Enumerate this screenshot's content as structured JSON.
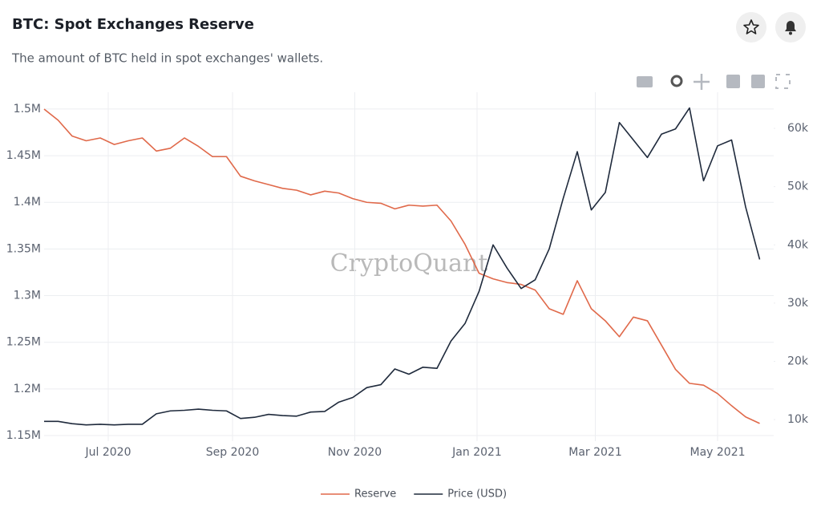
{
  "title": "BTC: Spot Exchanges Reserve",
  "subtitle": "The amount of BTC held in spot exchanges' wallets.",
  "chart_data": {
    "type": "line",
    "watermark": "CryptoQuant",
    "x": [
      "2020-05-30",
      "2020-06-06",
      "2020-06-13",
      "2020-06-20",
      "2020-06-27",
      "2020-07-04",
      "2020-07-11",
      "2020-07-18",
      "2020-07-25",
      "2020-08-01",
      "2020-08-08",
      "2020-08-15",
      "2020-08-22",
      "2020-08-29",
      "2020-09-05",
      "2020-09-12",
      "2020-09-19",
      "2020-09-26",
      "2020-10-03",
      "2020-10-10",
      "2020-10-17",
      "2020-10-24",
      "2020-10-31",
      "2020-11-07",
      "2020-11-14",
      "2020-11-21",
      "2020-11-28",
      "2020-12-05",
      "2020-12-12",
      "2020-12-19",
      "2020-12-26",
      "2021-01-02",
      "2021-01-09",
      "2021-01-16",
      "2021-01-23",
      "2021-01-30",
      "2021-02-06",
      "2021-02-13",
      "2021-02-20",
      "2021-02-27",
      "2021-03-06",
      "2021-03-13",
      "2021-03-20",
      "2021-03-27",
      "2021-04-03",
      "2021-04-10",
      "2021-04-17",
      "2021-04-24",
      "2021-05-01",
      "2021-05-08",
      "2021-05-15",
      "2021-05-22"
    ],
    "series": [
      {
        "name": "Reserve",
        "color": "#e0694a",
        "axis": "y",
        "values": [
          1500000,
          1488000,
          1471000,
          1466000,
          1469000,
          1462000,
          1466000,
          1469000,
          1455000,
          1458000,
          1469000,
          1460000,
          1449000,
          1449000,
          1428000,
          1423000,
          1419000,
          1415000,
          1413000,
          1408000,
          1412000,
          1410000,
          1404000,
          1400000,
          1399000,
          1393000,
          1397000,
          1396000,
          1397000,
          1380000,
          1355000,
          1324000,
          1318000,
          1314000,
          1312000,
          1306000,
          1286000,
          1280000,
          1316000,
          1286000,
          1273000,
          1256000,
          1277000,
          1273000,
          1247000,
          1221000,
          1206000,
          1204000,
          1195000,
          1182000,
          1170000,
          1163000
        ]
      },
      {
        "name": "Price (USD)",
        "color": "#1f2a3c",
        "axis": "y2",
        "values": [
          9700,
          9700,
          9300,
          9100,
          9200,
          9100,
          9200,
          9200,
          11000,
          11500,
          11600,
          11800,
          11600,
          11500,
          10200,
          10400,
          10900,
          10700,
          10600,
          11300,
          11400,
          13000,
          13800,
          15500,
          16000,
          18700,
          17800,
          19000,
          18800,
          23500,
          26500,
          32000,
          40000,
          36000,
          32500,
          34000,
          39300,
          48000,
          56000,
          46000,
          49000,
          61000,
          58000,
          55000,
          59000,
          59900,
          63500,
          51000,
          57000,
          58000,
          46500,
          37500
        ]
      }
    ],
    "xlim": [
      "2020-05-30",
      "2021-05-29"
    ],
    "xticks": [
      {
        "value": "2020-07-01",
        "label": "Jul 2020"
      },
      {
        "value": "2020-09-01",
        "label": "Sep 2020"
      },
      {
        "value": "2020-11-01",
        "label": "Nov 2020"
      },
      {
        "value": "2021-01-01",
        "label": "Jan 2021"
      },
      {
        "value": "2021-03-01",
        "label": "Mar 2021"
      },
      {
        "value": "2021-05-01",
        "label": "May 2021"
      }
    ],
    "ylim": [
      1144000,
      1518000
    ],
    "yticks": [
      {
        "value": 1150000,
        "label": "1.15M"
      },
      {
        "value": 1200000,
        "label": "1.2M"
      },
      {
        "value": 1250000,
        "label": "1.25M"
      },
      {
        "value": 1300000,
        "label": "1.3M"
      },
      {
        "value": 1350000,
        "label": "1.35M"
      },
      {
        "value": 1400000,
        "label": "1.4M"
      },
      {
        "value": 1450000,
        "label": "1.45M"
      },
      {
        "value": 1500000,
        "label": "1.5M"
      }
    ],
    "y2lim": [
      6300,
      66200
    ],
    "y2ticks": [
      {
        "value": 10000,
        "label": "10k"
      },
      {
        "value": 20000,
        "label": "20k"
      },
      {
        "value": 30000,
        "label": "30k"
      },
      {
        "value": 40000,
        "label": "40k"
      },
      {
        "value": 50000,
        "label": "50k"
      },
      {
        "value": 60000,
        "label": "60k"
      }
    ],
    "grid": true,
    "legend": "bottom"
  }
}
